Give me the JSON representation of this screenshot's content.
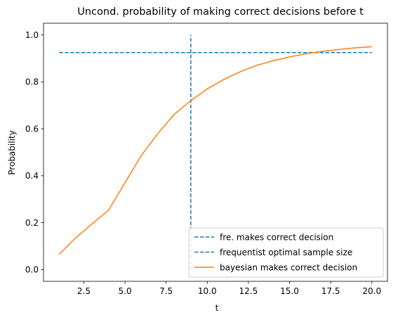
{
  "chart_data": {
    "type": "line",
    "title": "Uncond. probability of making correct decisions before t",
    "xlabel": "t",
    "ylabel": "Probability",
    "xlim": [
      0.05,
      20.95
    ],
    "ylim": [
      -0.05,
      1.05
    ],
    "xticks": [
      2.5,
      5.0,
      7.5,
      10.0,
      12.5,
      15.0,
      17.5,
      20.0
    ],
    "xtick_labels": [
      "2.5",
      "5.0",
      "7.5",
      "10.0",
      "12.5",
      "15.0",
      "17.5",
      "20.0"
    ],
    "yticks": [
      0.0,
      0.2,
      0.4,
      0.6,
      0.8,
      1.0
    ],
    "ytick_labels": [
      "0.0",
      "0.2",
      "0.4",
      "0.6",
      "0.8",
      "1.0"
    ],
    "grid": false,
    "legend_position": "lower-right",
    "series": [
      {
        "name": "fre. makes correct decision",
        "style": "dashed",
        "color": "#1f77b4",
        "x": [
          1,
          20
        ],
        "y": [
          0.925,
          0.925
        ]
      },
      {
        "name": "frequentist optimal sample size",
        "style": "dashed",
        "color": "#1f77b4",
        "x": [
          9,
          9
        ],
        "y": [
          0.0,
          1.0
        ]
      },
      {
        "name": "bayesian makes correct decision",
        "style": "solid",
        "color": "#ff7f0e",
        "x": [
          1,
          2,
          3,
          4,
          5,
          6,
          7,
          8,
          9,
          10,
          11,
          12,
          13,
          14,
          15,
          16,
          17,
          18,
          19,
          20
        ],
        "y": [
          0.065,
          0.135,
          0.195,
          0.253,
          0.37,
          0.487,
          0.58,
          0.662,
          0.72,
          0.77,
          0.81,
          0.843,
          0.87,
          0.89,
          0.906,
          0.92,
          0.93,
          0.938,
          0.945,
          0.95
        ]
      }
    ]
  }
}
